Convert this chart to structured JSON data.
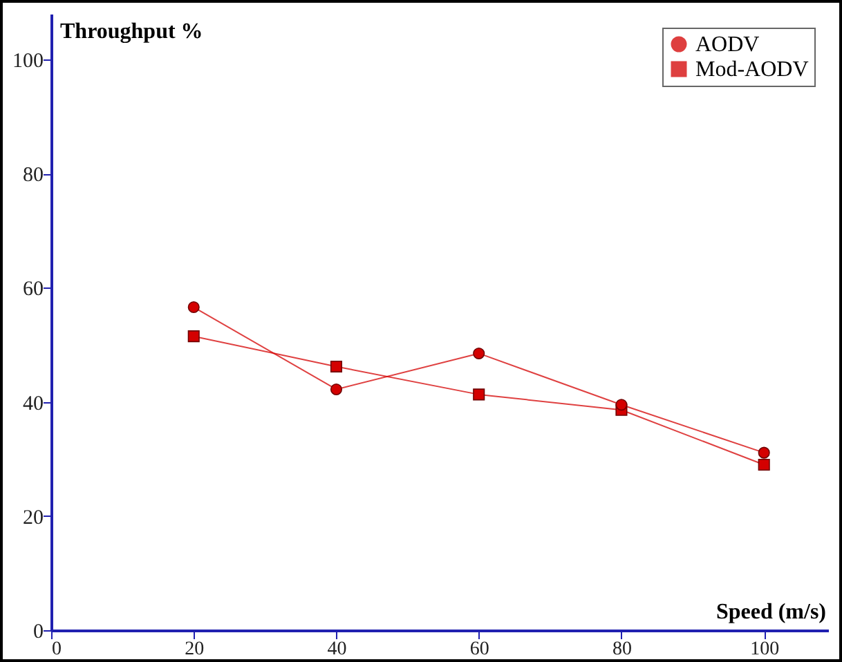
{
  "chart_data": {
    "type": "line",
    "xlabel": "Speed (m/s)",
    "ylabel": "Throughput %",
    "x": [
      20,
      40,
      60,
      80,
      100
    ],
    "series": [
      {
        "name": "AODV",
        "color": "#d40000",
        "marker": "circle",
        "values": [
          56.6,
          42.2,
          48.5,
          39.5,
          31.1
        ]
      },
      {
        "name": "Mod-AODV",
        "color": "#d40000",
        "marker": "square",
        "values": [
          51.5,
          46.2,
          41.3,
          38.6,
          29.0
        ]
      }
    ],
    "xlim": [
      0,
      109
    ],
    "ylim": [
      0,
      108
    ],
    "xticks": [
      0,
      20,
      40,
      60,
      80,
      100
    ],
    "yticks": [
      0,
      20,
      40,
      60,
      80,
      100
    ],
    "grid": false,
    "legend": "top right",
    "line_style": "solid"
  }
}
